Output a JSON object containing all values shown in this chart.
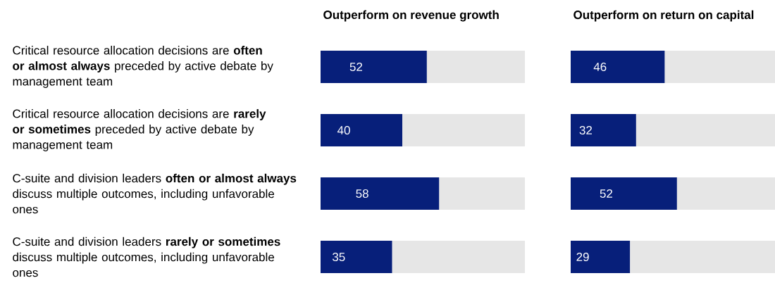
{
  "chart_data": [
    {
      "type": "bar",
      "orientation": "horizontal",
      "stacked": true,
      "title": "Outperform on revenue growth",
      "categories": [
        "Critical resource allocation decisions are **often or almost always** preceded by active debate by management team",
        "Critical resource allocation decisions are **rarely or sometimes** preceded by active debate by management team",
        "C-suite and division leaders **often or almost always** discuss multiple outcomes, including unfavorable ones",
        "C-suite and division leaders **rarely or sometimes** discuss multiple outcomes, including unfavorable ones"
      ],
      "xlim": [
        0,
        100
      ],
      "tick_labels": "y",
      "series": [
        {
          "color": "#071f7a",
          "values": [
            52,
            40,
            58,
            35
          ],
          "value_labels": [
            "52",
            "40",
            "58",
            "35"
          ]
        },
        {
          "color": "#e6e6e6",
          "values": [
            48,
            60,
            42,
            65
          ]
        }
      ]
    },
    {
      "type": "bar",
      "orientation": "horizontal",
      "stacked": true,
      "title": "Outperform on return on capital",
      "categories": [
        null,
        null,
        null,
        null
      ],
      "xlim": [
        0,
        100
      ],
      "tick_labels": false,
      "series": [
        {
          "color": "#071f7a",
          "values": [
            46,
            32,
            52,
            29
          ],
          "value_labels": [
            "46",
            "32",
            "52",
            "29"
          ]
        },
        {
          "color": "#e6e6e6",
          "values": [
            54,
            68,
            48,
            71
          ]
        }
      ]
    }
  ]
}
